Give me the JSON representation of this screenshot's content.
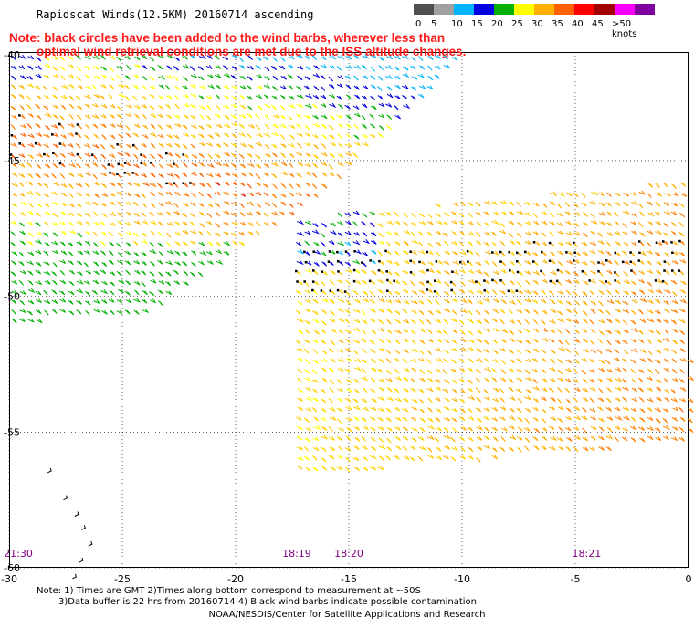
{
  "title": "Rapidscat Winds(12.5KM) 20160714 ascending",
  "note_line1": "Note: black circles have been added to the wind barbs, wherever less than",
  "note_line2": "optimal wind retrieval conditions are met due to the ISS altitude changes.",
  "color_scale": {
    "labels": [
      "0",
      "5",
      "10",
      "15",
      "20",
      "25",
      "30",
      "35",
      "40",
      "45",
      ">50 knots"
    ],
    "colors": [
      "#505050",
      "#a0a0a0",
      "#00b4ff",
      "#0000e0",
      "#00b000",
      "#ffff00",
      "#ffb000",
      "#ff6000",
      "#ff0000",
      "#a00000",
      "#ff00ff",
      "#8000a0"
    ]
  },
  "chart_data": {
    "type": "map",
    "x_ticks": [
      "-30",
      "-25",
      "-20",
      "-15",
      "-10",
      "-5",
      "0"
    ],
    "y_ticks": [
      "-40",
      "-45",
      "-50",
      "-55",
      "-60"
    ],
    "xlim": [
      -30,
      0
    ],
    "ylim": [
      -60,
      -41
    ],
    "pass_times": [
      {
        "label": "21:30",
        "lon": -30
      },
      {
        "label": "18:19",
        "lon": -17.3
      },
      {
        "label": "18:20",
        "lon": -15
      },
      {
        "label": "18:21",
        "lon": -4.5
      }
    ],
    "swaths": [
      {
        "name": "west",
        "polygon": [
          [
            -30,
            -41
          ],
          [
            -20.5,
            -41
          ],
          [
            -10,
            -41
          ],
          [
            -16,
            -46
          ],
          [
            -24,
            -50.5
          ],
          [
            -30,
            -51
          ]
        ]
      },
      {
        "name": "east",
        "polygon": [
          [
            -17.5,
            -47
          ],
          [
            -10,
            -46.5
          ],
          [
            -0.1,
            -45.7
          ],
          [
            0,
            -55.3
          ],
          [
            -10,
            -56
          ],
          [
            -17.5,
            -56.6
          ]
        ]
      }
    ]
  },
  "footer": {
    "line1": "Note: 1) Times are GMT 2)Times along bottom correspond to measurement at ~50S",
    "line2": "3)Data buffer is 22 hrs from 20160714 4) Black wind barbs indicate possible contamination",
    "line3": "NOAA/NESDIS/Center for Satellite Applications and Research"
  }
}
